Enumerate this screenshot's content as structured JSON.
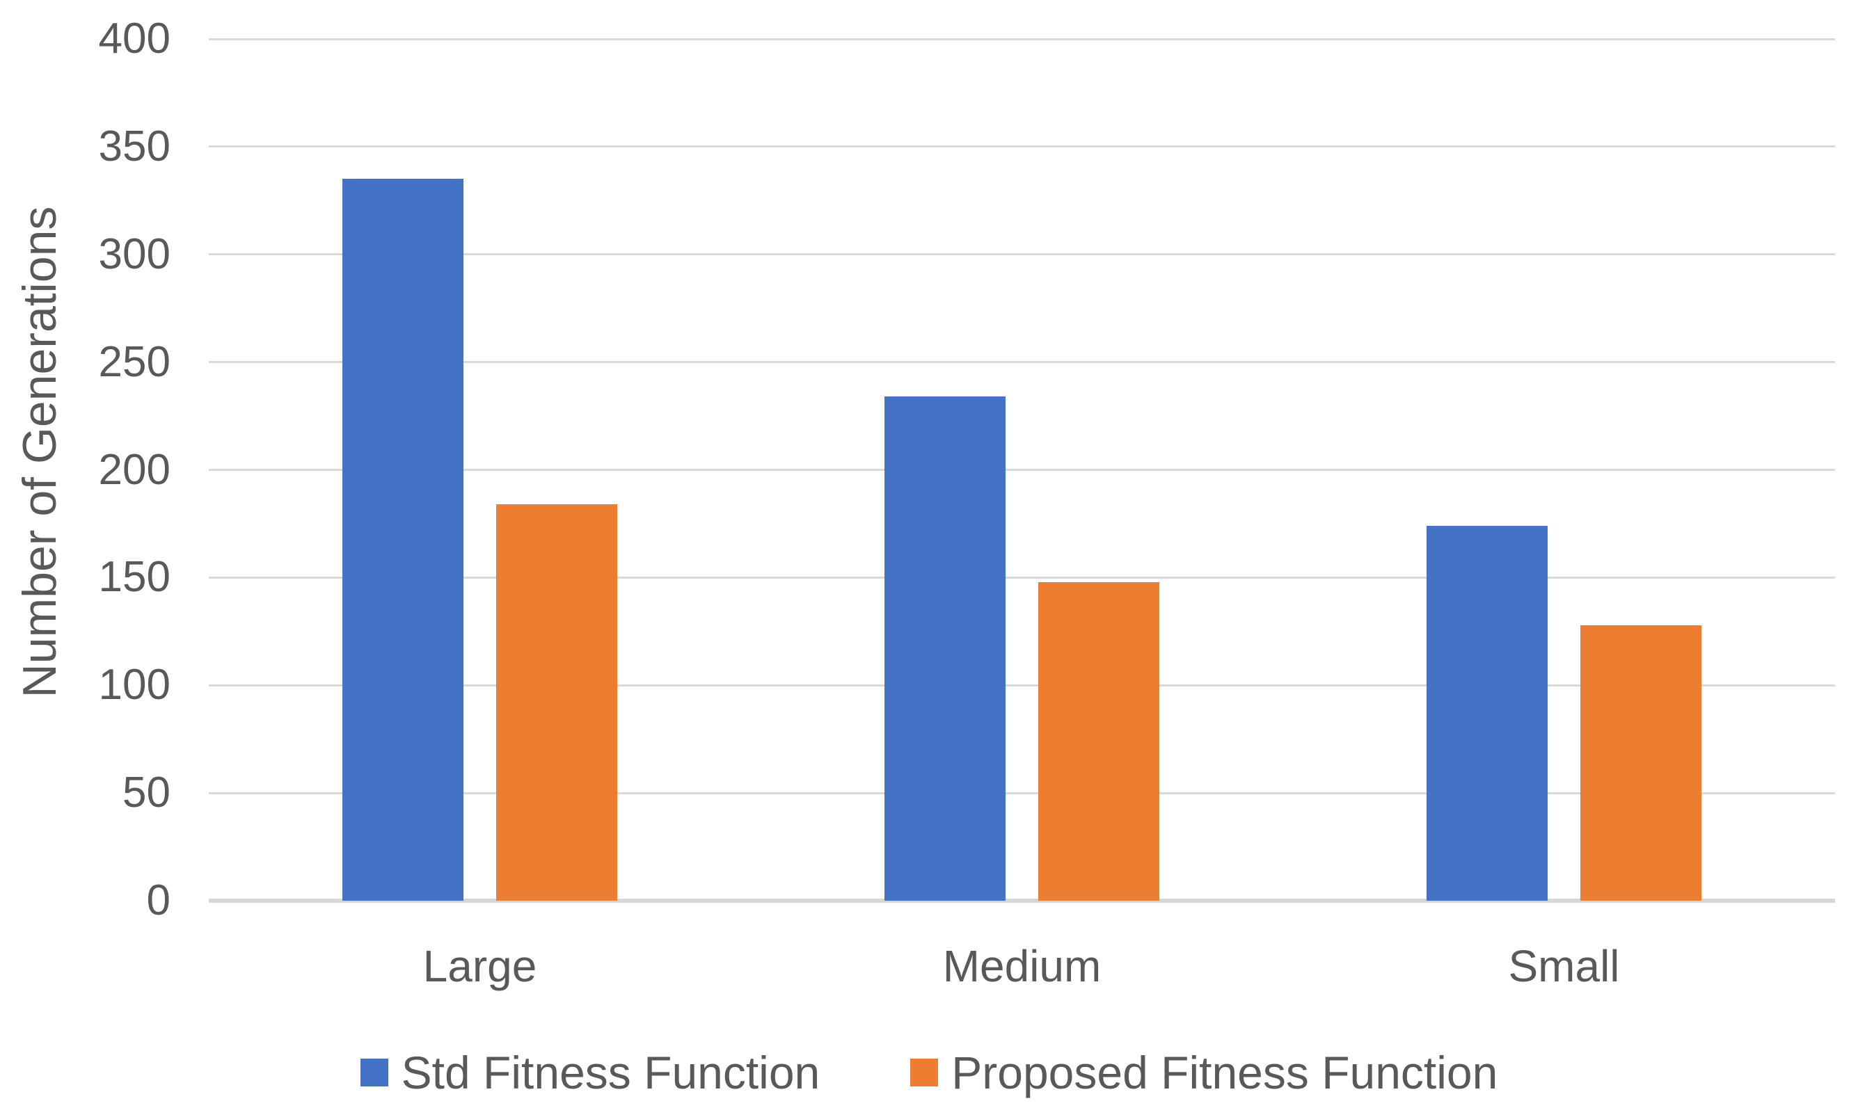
{
  "chart_data": {
    "type": "bar",
    "title": "",
    "xlabel": "",
    "ylabel": "Number of Generations",
    "categories": [
      "Large",
      "Medium",
      "Small"
    ],
    "series": [
      {
        "name": "Std Fitness Function",
        "color": "#4472C4",
        "values": [
          335,
          234,
          174
        ]
      },
      {
        "name": "Proposed Fitness Function",
        "color": "#ED7D31",
        "values": [
          184,
          148,
          128
        ]
      }
    ],
    "ylim": [
      0,
      400
    ],
    "ytick_step": 50,
    "ytick_labels": [
      "0",
      "50",
      "100",
      "150",
      "200",
      "250",
      "300",
      "350",
      "400"
    ],
    "grid": true,
    "legend_position": "bottom"
  },
  "colors": {
    "background": "#FFFFFF",
    "text": "#595959",
    "gridline": "#D9D9D9",
    "axis_line": "#D6D6D6"
  }
}
